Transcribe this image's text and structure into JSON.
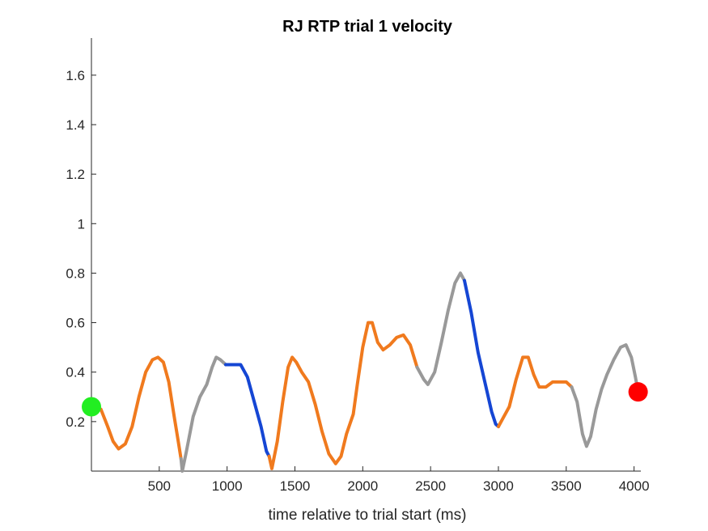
{
  "chart_data": {
    "type": "line",
    "title": "RJ  RTP trial 1 velocity",
    "xlabel": "time relative to trial start (ms)",
    "ylabel": "",
    "xlim": [
      0,
      4050
    ],
    "ylim": [
      0,
      1.75
    ],
    "xticks": [
      500,
      1000,
      1500,
      2000,
      2500,
      3000,
      3500,
      4000
    ],
    "xtick_labels": [
      "500",
      "1000",
      "1500",
      "2000",
      "2500",
      "3000",
      "3500",
      "4000"
    ],
    "yticks": [
      0.2,
      0.4,
      0.6,
      0.8,
      1.0,
      1.2,
      1.4,
      1.6
    ],
    "ytick_labels": [
      "0.2",
      "0.4",
      "0.6",
      "0.8",
      "1",
      "1.2",
      "1.4",
      "1.6"
    ],
    "grid": false,
    "colors": {
      "orange": "#f07a1e",
      "gray": "#999999",
      "blue": "#1546d4",
      "start_marker": "#22ee22",
      "end_marker": "#ff0000"
    },
    "segments": [
      {
        "color": "orange",
        "points": [
          [
            0,
            0.26
          ],
          [
            70,
            0.25
          ],
          [
            120,
            0.18
          ],
          [
            160,
            0.12
          ],
          [
            200,
            0.09
          ],
          [
            250,
            0.11
          ],
          [
            300,
            0.18
          ],
          [
            350,
            0.3
          ],
          [
            400,
            0.4
          ],
          [
            450,
            0.45
          ],
          [
            490,
            0.46
          ],
          [
            530,
            0.44
          ],
          [
            570,
            0.36
          ],
          [
            610,
            0.22
          ],
          [
            640,
            0.12
          ],
          [
            660,
            0.05
          ]
        ]
      },
      {
        "color": "gray",
        "points": [
          [
            660,
            0.05
          ],
          [
            670,
            0.0
          ],
          [
            700,
            0.08
          ],
          [
            750,
            0.22
          ],
          [
            800,
            0.3
          ],
          [
            850,
            0.35
          ],
          [
            890,
            0.42
          ],
          [
            920,
            0.46
          ],
          [
            950,
            0.45
          ],
          [
            990,
            0.43
          ]
        ]
      },
      {
        "color": "blue",
        "points": [
          [
            990,
            0.43
          ],
          [
            1050,
            0.43
          ],
          [
            1100,
            0.43
          ],
          [
            1150,
            0.38
          ],
          [
            1200,
            0.28
          ],
          [
            1250,
            0.18
          ],
          [
            1290,
            0.08
          ],
          [
            1310,
            0.06
          ]
        ]
      },
      {
        "color": "orange",
        "points": [
          [
            1310,
            0.06
          ],
          [
            1330,
            0.01
          ],
          [
            1370,
            0.12
          ],
          [
            1410,
            0.28
          ],
          [
            1450,
            0.42
          ],
          [
            1480,
            0.46
          ],
          [
            1510,
            0.44
          ],
          [
            1550,
            0.4
          ],
          [
            1600,
            0.36
          ],
          [
            1650,
            0.27
          ],
          [
            1700,
            0.16
          ],
          [
            1750,
            0.07
          ],
          [
            1800,
            0.03
          ],
          [
            1840,
            0.06
          ],
          [
            1880,
            0.15
          ],
          [
            1930,
            0.23
          ],
          [
            1960,
            0.35
          ],
          [
            2000,
            0.5
          ],
          [
            2040,
            0.6
          ],
          [
            2070,
            0.6
          ],
          [
            2110,
            0.52
          ],
          [
            2150,
            0.49
          ],
          [
            2200,
            0.51
          ],
          [
            2250,
            0.54
          ],
          [
            2300,
            0.55
          ],
          [
            2350,
            0.51
          ],
          [
            2400,
            0.42
          ]
        ]
      },
      {
        "color": "gray",
        "points": [
          [
            2400,
            0.42
          ],
          [
            2450,
            0.37
          ],
          [
            2480,
            0.35
          ],
          [
            2530,
            0.4
          ],
          [
            2580,
            0.52
          ],
          [
            2630,
            0.65
          ],
          [
            2680,
            0.76
          ],
          [
            2720,
            0.8
          ],
          [
            2750,
            0.77
          ]
        ]
      },
      {
        "color": "blue",
        "points": [
          [
            2750,
            0.77
          ],
          [
            2800,
            0.64
          ],
          [
            2850,
            0.48
          ],
          [
            2900,
            0.36
          ],
          [
            2950,
            0.24
          ],
          [
            2980,
            0.19
          ],
          [
            3000,
            0.18
          ]
        ]
      },
      {
        "color": "orange",
        "points": [
          [
            3000,
            0.18
          ],
          [
            3030,
            0.21
          ],
          [
            3080,
            0.26
          ],
          [
            3130,
            0.37
          ],
          [
            3180,
            0.46
          ],
          [
            3220,
            0.46
          ],
          [
            3260,
            0.39
          ],
          [
            3300,
            0.34
          ],
          [
            3350,
            0.34
          ],
          [
            3400,
            0.36
          ],
          [
            3450,
            0.36
          ],
          [
            3500,
            0.36
          ],
          [
            3540,
            0.34
          ]
        ]
      },
      {
        "color": "gray",
        "points": [
          [
            3540,
            0.34
          ],
          [
            3580,
            0.28
          ],
          [
            3620,
            0.15
          ],
          [
            3650,
            0.1
          ],
          [
            3680,
            0.14
          ],
          [
            3720,
            0.25
          ],
          [
            3760,
            0.33
          ],
          [
            3800,
            0.39
          ],
          [
            3850,
            0.45
          ],
          [
            3900,
            0.5
          ],
          [
            3940,
            0.51
          ],
          [
            3980,
            0.46
          ],
          [
            4010,
            0.38
          ],
          [
            4030,
            0.32
          ]
        ]
      }
    ],
    "markers": [
      {
        "name": "start",
        "x": 0,
        "y": 0.26,
        "color": "start_marker"
      },
      {
        "name": "end",
        "x": 4030,
        "y": 0.32,
        "color": "end_marker"
      }
    ]
  }
}
